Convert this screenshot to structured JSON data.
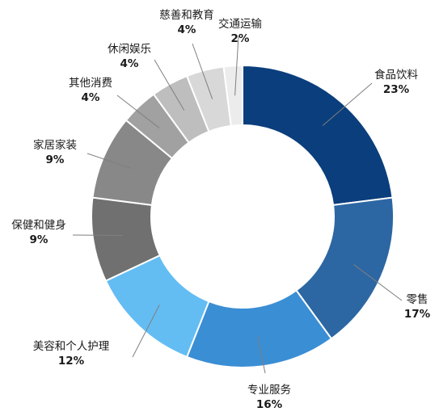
{
  "chart_data": {
    "type": "pie",
    "variant": "donut",
    "start_angle_deg": 0,
    "direction": "clockwise",
    "slices": [
      {
        "name": "食品饮料",
        "value": 23,
        "label": "23%",
        "color": "#0b3e7c"
      },
      {
        "name": "零售",
        "value": 17,
        "label": "17%",
        "color": "#2c67a3"
      },
      {
        "name": "专业服务",
        "value": 16,
        "label": "16%",
        "color": "#3a8ed4"
      },
      {
        "name": "美容和个人护理",
        "value": 12,
        "label": "12%",
        "color": "#63bdf3"
      },
      {
        "name": "保健和健身",
        "value": 9,
        "label": "9%",
        "color": "#707070"
      },
      {
        "name": "家居家装",
        "value": 9,
        "label": "9%",
        "color": "#888888"
      },
      {
        "name": "其他消费",
        "value": 4,
        "label": "4%",
        "color": "#a1a1a1"
      },
      {
        "name": "休闲娱乐",
        "value": 4,
        "label": "4%",
        "color": "#bebebe"
      },
      {
        "name": "慈善和教育",
        "value": 4,
        "label": "4%",
        "color": "#d8d8d8"
      },
      {
        "name": "交通运输",
        "value": 2,
        "label": "2%",
        "color": "#ececec"
      }
    ]
  }
}
